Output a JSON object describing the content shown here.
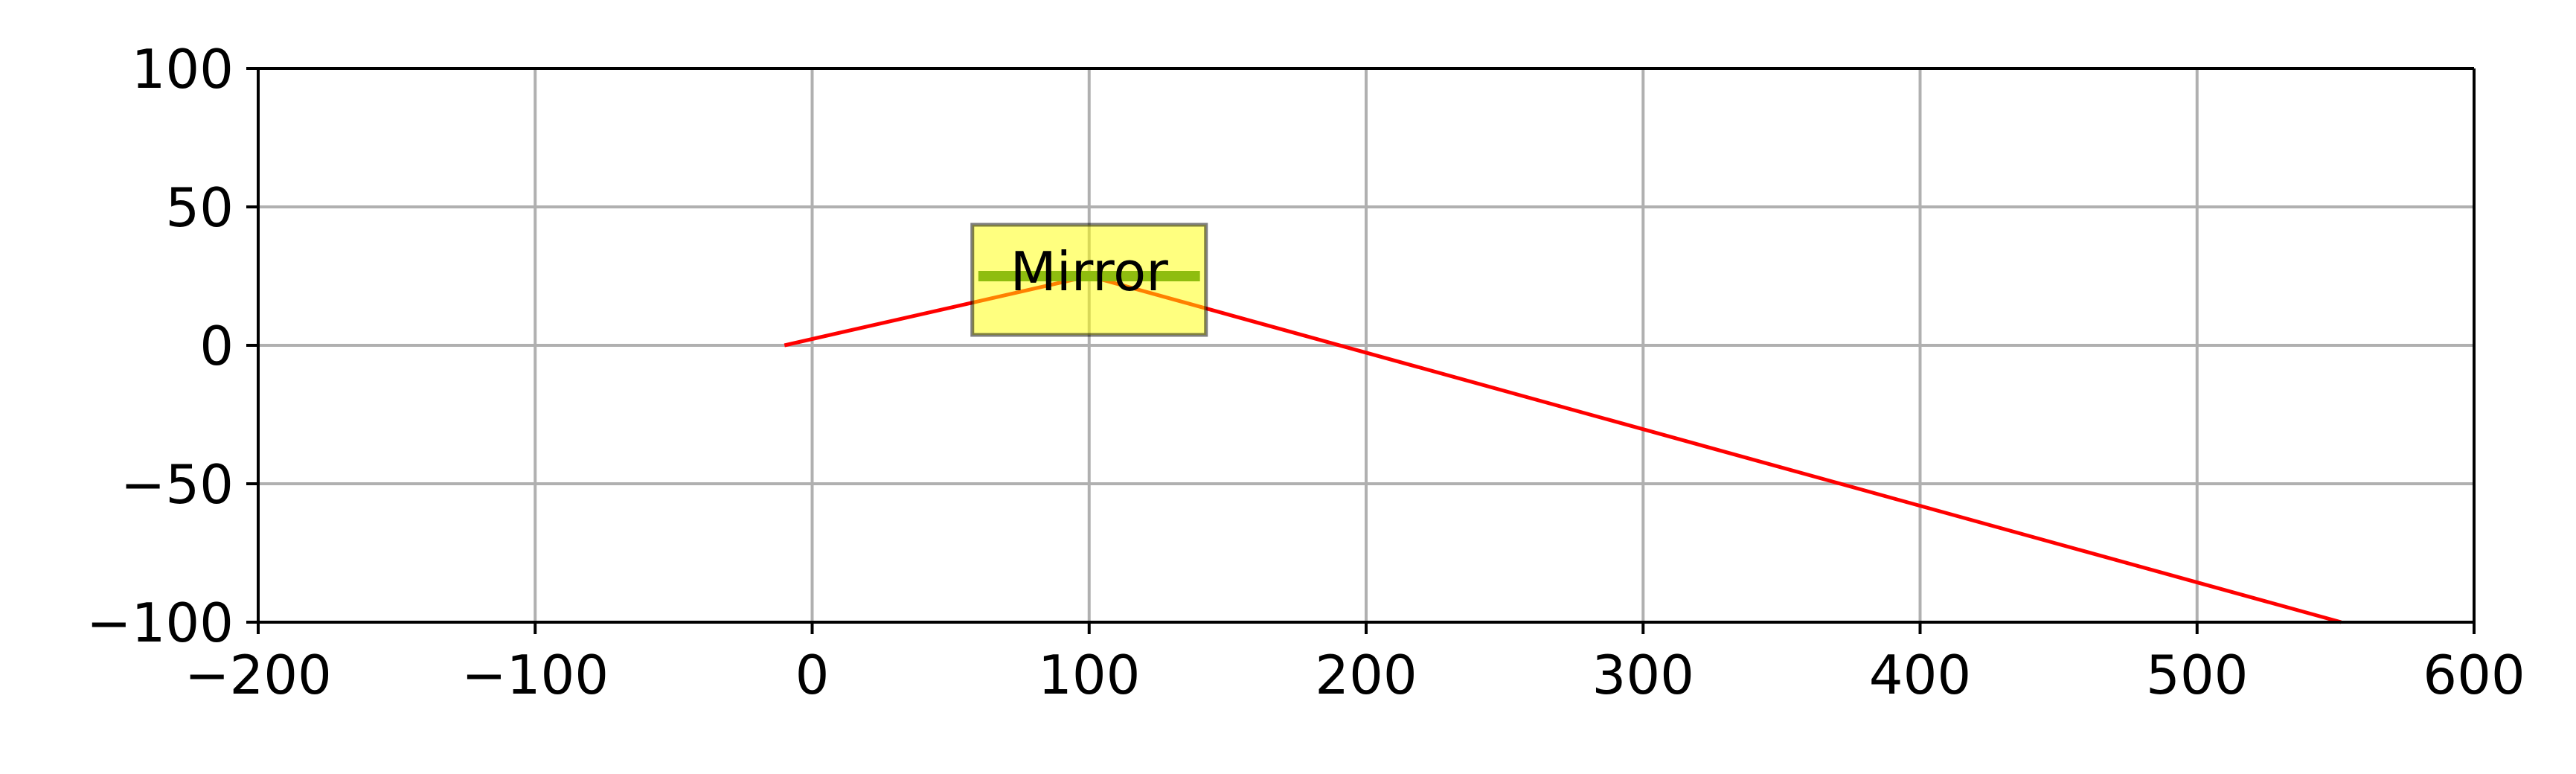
{
  "chart_data": {
    "type": "line",
    "title": "",
    "xlabel": "",
    "ylabel": "",
    "xlim": [
      -200,
      600
    ],
    "ylim": [
      -100,
      100
    ],
    "grid": true,
    "x_ticks": [
      -200,
      -100,
      0,
      100,
      200,
      300,
      400,
      500,
      600
    ],
    "y_ticks": [
      100,
      50,
      0,
      -50,
      -100
    ],
    "x_tick_labels": [
      "−200",
      "−100",
      "0",
      "100",
      "200",
      "300",
      "400",
      "500",
      "600"
    ],
    "y_tick_labels": [
      "100",
      "50",
      "0",
      "−50",
      "−100"
    ],
    "series": [
      {
        "color": "#ff0000",
        "x": [
          -10,
          100,
          552
        ],
        "y": [
          0,
          25,
          -100
        ]
      }
    ],
    "mirror_segment": {
      "x": [
        60,
        140
      ],
      "y": [
        25,
        25
      ],
      "color": "#1f7a1f"
    },
    "annotations": [
      {
        "text": "Mirror",
        "x": 100,
        "y": 25,
        "box_color": "#ffff00",
        "box_alpha": 0.5
      }
    ]
  }
}
